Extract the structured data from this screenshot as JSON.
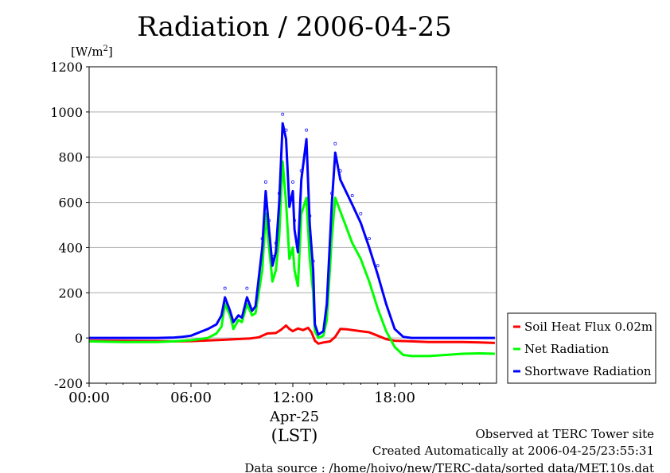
{
  "chart_data": {
    "type": "line",
    "title": "Radiation / 2006-04-25",
    "ylabel_unit": "[W/m",
    "ylabel_unit_sup": "2",
    "ylabel_unit_close": "]",
    "ylim": [
      -200,
      1200
    ],
    "yticks": [
      -200,
      0,
      200,
      400,
      600,
      800,
      1000,
      1200
    ],
    "xlim_hours": [
      0,
      24
    ],
    "xticks": [
      {
        "hour": 0,
        "label": "00:00"
      },
      {
        "hour": 6,
        "label": "06:00"
      },
      {
        "hour": 12,
        "label": "12:00"
      },
      {
        "hour": 18,
        "label": "18:00"
      }
    ],
    "date_label": "Apr-25",
    "xlabel": "(LST)",
    "grid": "horizontal",
    "legend_position": "right",
    "series": [
      {
        "name": "Soil Heat Flux 0.02m",
        "color": "#ff0000",
        "points": [
          [
            0,
            -12
          ],
          [
            2,
            -13
          ],
          [
            4,
            -14
          ],
          [
            5,
            -15
          ],
          [
            6,
            -14
          ],
          [
            7,
            -11
          ],
          [
            8,
            -8
          ],
          [
            9,
            -4
          ],
          [
            9.5,
            -2
          ],
          [
            10,
            3
          ],
          [
            10.5,
            20
          ],
          [
            11,
            22
          ],
          [
            11.3,
            36
          ],
          [
            11.6,
            55
          ],
          [
            11.8,
            40
          ],
          [
            12,
            30
          ],
          [
            12.3,
            42
          ],
          [
            12.6,
            35
          ],
          [
            12.9,
            45
          ],
          [
            13.1,
            25
          ],
          [
            13.3,
            -12
          ],
          [
            13.5,
            -25
          ],
          [
            13.8,
            -20
          ],
          [
            14.2,
            -15
          ],
          [
            14.5,
            5
          ],
          [
            14.8,
            40
          ],
          [
            15.2,
            38
          ],
          [
            16,
            30
          ],
          [
            16.5,
            25
          ],
          [
            17,
            10
          ],
          [
            17.5,
            -5
          ],
          [
            18,
            -12
          ],
          [
            19,
            -15
          ],
          [
            20,
            -18
          ],
          [
            21,
            -18
          ],
          [
            22,
            -18
          ],
          [
            23,
            -20
          ],
          [
            23.9,
            -22
          ]
        ]
      },
      {
        "name": "Net Radiation",
        "color": "#00ff00",
        "points": [
          [
            0,
            -15
          ],
          [
            2,
            -18
          ],
          [
            4,
            -18
          ],
          [
            5,
            -15
          ],
          [
            5.5,
            -12
          ],
          [
            6,
            -10
          ],
          [
            6.5,
            -5
          ],
          [
            7,
            0
          ],
          [
            7.5,
            20
          ],
          [
            7.8,
            50
          ],
          [
            8,
            150
          ],
          [
            8.3,
            100
          ],
          [
            8.5,
            40
          ],
          [
            8.8,
            80
          ],
          [
            9,
            70
          ],
          [
            9.3,
            150
          ],
          [
            9.6,
            100
          ],
          [
            9.8,
            110
          ],
          [
            10.2,
            300
          ],
          [
            10.4,
            550
          ],
          [
            10.6,
            400
          ],
          [
            10.8,
            250
          ],
          [
            11,
            300
          ],
          [
            11.2,
            450
          ],
          [
            11.4,
            780
          ],
          [
            11.6,
            600
          ],
          [
            11.8,
            350
          ],
          [
            12,
            400
          ],
          [
            12.1,
            300
          ],
          [
            12.3,
            230
          ],
          [
            12.5,
            550
          ],
          [
            12.8,
            620
          ],
          [
            13,
            350
          ],
          [
            13.2,
            200
          ],
          [
            13.3,
            30
          ],
          [
            13.5,
            0
          ],
          [
            13.8,
            10
          ],
          [
            14,
            80
          ],
          [
            14.3,
            450
          ],
          [
            14.5,
            620
          ],
          [
            14.8,
            560
          ],
          [
            15.5,
            420
          ],
          [
            16,
            350
          ],
          [
            16.5,
            250
          ],
          [
            17,
            130
          ],
          [
            17.5,
            30
          ],
          [
            18,
            -40
          ],
          [
            18.5,
            -75
          ],
          [
            19,
            -80
          ],
          [
            20,
            -80
          ],
          [
            21,
            -75
          ],
          [
            22,
            -70
          ],
          [
            23,
            -68
          ],
          [
            23.9,
            -70
          ]
        ]
      },
      {
        "name": "Shortwave Radiation",
        "color": "#0000ff",
        "points": [
          [
            0,
            0
          ],
          [
            2,
            0
          ],
          [
            4,
            0
          ],
          [
            5,
            2
          ],
          [
            5.5,
            5
          ],
          [
            6,
            10
          ],
          [
            6.5,
            25
          ],
          [
            7,
            40
          ],
          [
            7.5,
            60
          ],
          [
            7.8,
            100
          ],
          [
            8,
            180
          ],
          [
            8.3,
            120
          ],
          [
            8.5,
            70
          ],
          [
            8.8,
            100
          ],
          [
            9,
            90
          ],
          [
            9.3,
            180
          ],
          [
            9.6,
            120
          ],
          [
            9.8,
            140
          ],
          [
            10.2,
            400
          ],
          [
            10.4,
            650
          ],
          [
            10.6,
            480
          ],
          [
            10.8,
            320
          ],
          [
            11,
            380
          ],
          [
            11.2,
            600
          ],
          [
            11.4,
            950
          ],
          [
            11.6,
            880
          ],
          [
            11.8,
            580
          ],
          [
            12,
            650
          ],
          [
            12.1,
            480
          ],
          [
            12.3,
            380
          ],
          [
            12.5,
            700
          ],
          [
            12.8,
            880
          ],
          [
            13,
            500
          ],
          [
            13.2,
            300
          ],
          [
            13.3,
            60
          ],
          [
            13.5,
            15
          ],
          [
            13.8,
            30
          ],
          [
            14,
            150
          ],
          [
            14.3,
            600
          ],
          [
            14.5,
            820
          ],
          [
            14.8,
            700
          ],
          [
            15.5,
            590
          ],
          [
            16,
            510
          ],
          [
            16.5,
            400
          ],
          [
            17,
            280
          ],
          [
            17.5,
            150
          ],
          [
            18,
            40
          ],
          [
            18.5,
            5
          ],
          [
            19,
            0
          ],
          [
            20,
            0
          ],
          [
            21,
            0
          ],
          [
            22,
            0
          ],
          [
            23,
            0
          ],
          [
            23.9,
            0
          ]
        ]
      }
    ]
  },
  "footer": {
    "line1": "Observed at TERC Tower site",
    "line2": "Created Automatically at 2006-04-25/23:55:31",
    "line3": "Data source : /home/hoivo/new/TERC-data/sorted  data/MET.10s.dat"
  }
}
